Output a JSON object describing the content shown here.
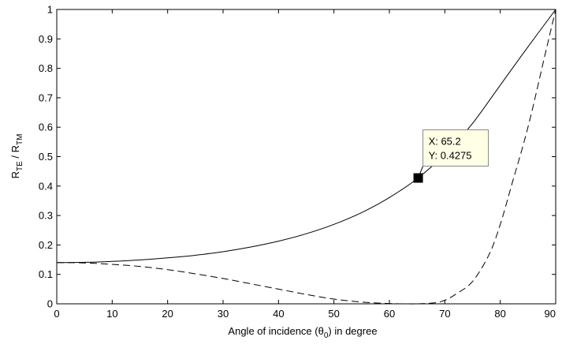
{
  "chart_data": {
    "type": "line",
    "xlabel": {
      "prefix": "Angle of incidence (",
      "symbol": "θ",
      "subscript": "0",
      "suffix": ") in degree"
    },
    "ylabel": {
      "r1": "R",
      "sub1": "TE",
      "sep": " / ",
      "r2": "R",
      "sub2": "TM"
    },
    "xlim": [
      0,
      90
    ],
    "ylim": [
      0,
      1
    ],
    "xticks": [
      0,
      10,
      20,
      30,
      40,
      50,
      60,
      70,
      80,
      90
    ],
    "yticks": [
      0,
      0.1,
      0.2,
      0.3,
      0.4,
      0.5,
      0.6,
      0.7,
      0.8,
      0.9,
      1
    ],
    "grid": false,
    "series": [
      {
        "style": "solid",
        "color": "#000000",
        "x": [
          0,
          5,
          10,
          15,
          20,
          25,
          30,
          35,
          40,
          45,
          50,
          55,
          60,
          65,
          70,
          75,
          80,
          85,
          90
        ],
        "y": [
          0.14,
          0.141,
          0.144,
          0.149,
          0.156,
          0.165,
          0.177,
          0.193,
          0.213,
          0.238,
          0.27,
          0.31,
          0.361,
          0.425,
          0.508,
          0.613,
          0.743,
          0.873,
          1.0
        ]
      },
      {
        "style": "dashed",
        "color": "#000000",
        "x": [
          0,
          5,
          10,
          15,
          20,
          25,
          30,
          35,
          40,
          45,
          50,
          55,
          60,
          63,
          65,
          68,
          70,
          72,
          75,
          78,
          80,
          82,
          85,
          88,
          90
        ],
        "y": [
          0.14,
          0.139,
          0.134,
          0.127,
          0.116,
          0.102,
          0.086,
          0.068,
          0.05,
          0.032,
          0.016,
          0.006,
          0.001,
          0.0,
          0.0,
          0.003,
          0.012,
          0.033,
          0.076,
          0.168,
          0.27,
          0.4,
          0.6,
          0.84,
          1.0
        ]
      }
    ],
    "datatip": {
      "x": 65.2,
      "y": 0.4275,
      "text_x": "X: 65.2",
      "text_y": "Y: 0.4275"
    }
  }
}
